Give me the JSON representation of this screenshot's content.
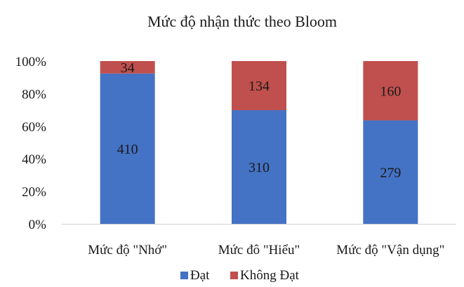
{
  "chart_data": {
    "type": "bar",
    "stacked": "percent",
    "title": "Mức độ nhận thức theo Bloom",
    "categories": [
      "Mức độ \"Nhớ\"",
      "Mức đô \"Hiểu\"",
      "Mức độ \"Vận dụng\""
    ],
    "series": [
      {
        "name": "Đạt",
        "values": [
          410,
          310,
          279
        ],
        "color": "#4472C4"
      },
      {
        "name": "Không Đạt",
        "values": [
          34,
          134,
          160
        ],
        "color": "#C0504D"
      }
    ],
    "yticks": [
      "0%",
      "20%",
      "40%",
      "60%",
      "80%",
      "100%"
    ],
    "ylim": [
      0,
      100
    ],
    "grid": false,
    "legend": "bottom"
  }
}
